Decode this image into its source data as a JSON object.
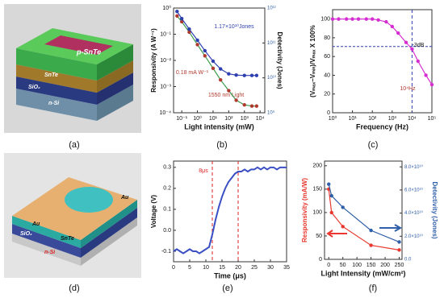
{
  "captions": [
    "(a)",
    "(b)",
    "(c)",
    "(d)",
    "(e)",
    "(f)"
  ],
  "images": {
    "a": {
      "labels": [
        "p-SnTe",
        "SnTe",
        "SiO₂",
        "n-Si"
      ]
    },
    "d": {
      "labels": [
        "Au",
        "SnTe",
        "SiO₂",
        "n-Si",
        "Au"
      ]
    }
  },
  "chart_data": [
    {
      "type": "line",
      "xlabel": "Light intensity (mW)",
      "ylabel": "Responsivity (A W⁻¹)",
      "y2label": "Detectivity (Jones)",
      "xlog": true,
      "ylog": true,
      "y2log": true,
      "xlim": [
        0.03,
        20000
      ],
      "xticks": [
        {
          "value": 0.1,
          "label": "10⁻¹"
        },
        {
          "value": 1,
          "label": "10⁰"
        },
        {
          "value": 10,
          "label": "10¹"
        },
        {
          "value": 100,
          "label": "10²"
        },
        {
          "value": 1000,
          "label": "10³"
        },
        {
          "value": 10000,
          "label": "10⁴"
        }
      ],
      "ylim": [
        0.0001,
        1
      ],
      "yticks": [
        {
          "value": 0.0001,
          "label": "10⁻⁴"
        },
        {
          "value": 0.001,
          "label": "10⁻³"
        },
        {
          "value": 0.01,
          "label": "10⁻²"
        },
        {
          "value": 0.1,
          "label": "10⁻¹"
        },
        {
          "value": 1,
          "label": "10⁰"
        }
      ],
      "y2lim": [
        1000000000,
        1000000000000
      ],
      "y2ticks": [
        {
          "value": 1000000000,
          "label": "10⁹"
        },
        {
          "value": 10000000000,
          "label": "10¹⁰"
        },
        {
          "value": 100000000000,
          "label": "10¹¹"
        },
        {
          "value": 1000000000000,
          "label": "10¹²"
        }
      ],
      "annotations": [
        "1.17×10¹⁰Jones",
        "0.18 mA W⁻¹",
        "1550 nm Light"
      ],
      "x": [
        0.05,
        0.1,
        0.3,
        1,
        3,
        10,
        30,
        100,
        300,
        1000,
        3000,
        6000
      ],
      "series": [
        {
          "color": "#3a9a4a",
          "marker_color": "#b03a2e",
          "values": [
            0.5,
            0.3,
            0.12,
            0.04,
            0.015,
            0.005,
            0.0018,
            0.0007,
            0.0003,
            0.0002,
            0.00018,
            0.00018
          ]
        },
        {
          "color": "#2e3fb0",
          "marker_color": "#2e3fb0",
          "axis": "y2",
          "values": [
            800000000000,
            500000000000,
            250000000000,
            120000000000,
            60000000000,
            30000000000,
            18000000000,
            13000000000,
            12000000000,
            11700000000,
            11700000000,
            11700000000
          ]
        }
      ]
    },
    {
      "type": "line",
      "xlabel": "Frequency (Hz)",
      "ylabel": "(Vₘₐₓ−Vₘᵢₙ)/Vₘₐₓ X 100%",
      "xlog": true,
      "xlim": [
        1,
        100000
      ],
      "xticks": [
        {
          "value": 1,
          "label": "10⁰"
        },
        {
          "value": 10,
          "label": "10¹"
        },
        {
          "value": 100,
          "label": "10²"
        },
        {
          "value": 1000,
          "label": "10³"
        },
        {
          "value": 10000,
          "label": "10⁴"
        },
        {
          "value": 100000,
          "label": "10⁵"
        }
      ],
      "ylim": [
        0,
        110
      ],
      "yticks": [
        0,
        20,
        40,
        60,
        80,
        100
      ],
      "ref_y": 70.7,
      "ref_x": [
        10000
      ],
      "annotations": [
        "-3dB",
        "10⁴Hz"
      ],
      "x": [
        1,
        2,
        5,
        10,
        20,
        50,
        100,
        200,
        500,
        1000,
        2000,
        5000,
        10000,
        20000,
        50000,
        100000
      ],
      "series": [
        {
          "color": "#d62fd1",
          "marker_color": "#d62fd1",
          "values": [
            100,
            100,
            100,
            100,
            100,
            100,
            100,
            99,
            97,
            92,
            85,
            75,
            68,
            55,
            40,
            30
          ]
        }
      ]
    },
    {
      "type": "line",
      "xlabel": "Time (μs)",
      "ylabel": "Voltage (V)",
      "xlim": [
        0,
        35
      ],
      "xticks": [
        0,
        5,
        10,
        15,
        20,
        25,
        30,
        35
      ],
      "ylim": [
        -0.15,
        0.33
      ],
      "yticks": [
        -0.1,
        {
          "value": 0,
          "label": "0.0"
        },
        0.1,
        0.2,
        0.3
      ],
      "ref_x": [
        12,
        20
      ],
      "annotations": [
        "8μs"
      ],
      "x": [
        0,
        1,
        2,
        3,
        4,
        5,
        6,
        7,
        8,
        9,
        10,
        11,
        12,
        13,
        14,
        15,
        16,
        17,
        18,
        19,
        20,
        21,
        22,
        23,
        24,
        25,
        26,
        27,
        28,
        29,
        30,
        31,
        32,
        33,
        34,
        35
      ],
      "series": [
        {
          "color": "#3b4fc4",
          "values": [
            -0.1,
            -0.09,
            -0.1,
            -0.11,
            -0.1,
            -0.09,
            -0.1,
            -0.1,
            -0.11,
            -0.1,
            -0.09,
            -0.08,
            -0.02,
            0.05,
            0.11,
            0.16,
            0.2,
            0.23,
            0.25,
            0.27,
            0.28,
            0.28,
            0.29,
            0.28,
            0.29,
            0.29,
            0.3,
            0.29,
            0.3,
            0.29,
            0.3,
            0.3,
            0.29,
            0.3,
            0.3,
            0.3
          ]
        }
      ]
    },
    {
      "type": "line",
      "xlabel": "Light Intensity (mW/cm²)",
      "ylabel": "Responsivity (mA/W)",
      "y2label": "Detectivity (Jones)",
      "xlim": [
        -15,
        260
      ],
      "xticks": [
        0,
        50,
        100,
        150,
        200,
        250
      ],
      "ylim": [
        0,
        210
      ],
      "yticks": [
        0,
        50,
        100,
        150,
        200
      ],
      "y2lim": [
        0,
        85000000000
      ],
      "y2ticks": [
        {
          "value": 0,
          "label": "0.0"
        },
        {
          "value": 20000000000,
          "label": "2.0×10¹⁰"
        },
        {
          "value": 40000000000,
          "label": "4.0×10¹⁰"
        },
        {
          "value": 60000000000,
          "label": "6.0×10¹⁰"
        },
        {
          "value": 80000000000,
          "label": "8.0×10¹⁰"
        }
      ],
      "x": [
        0,
        10,
        50,
        150,
        250
      ],
      "series": [
        {
          "color": "#e8382f",
          "marker_color": "#e8382f",
          "values": [
            150,
            100,
            70,
            30,
            20
          ]
        },
        {
          "color": "#2f5fa8",
          "marker_color": "#2f5fa8",
          "axis": "y2",
          "values": [
            65000000000,
            55000000000,
            45000000000,
            25000000000,
            15000000000
          ]
        }
      ]
    }
  ]
}
